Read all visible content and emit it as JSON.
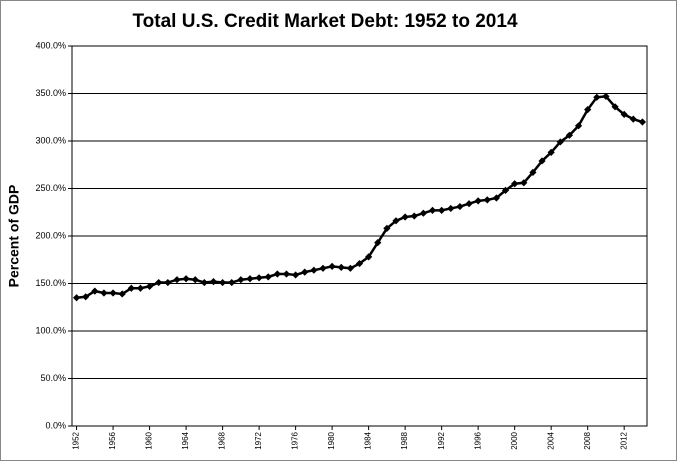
{
  "chart_data": {
    "type": "line",
    "title": "Total U.S. Credit Market Debt:  1952 to 2014",
    "y_label": "Percent of GDP",
    "x": [
      1952,
      1953,
      1954,
      1955,
      1956,
      1957,
      1958,
      1959,
      1960,
      1961,
      1962,
      1963,
      1964,
      1965,
      1966,
      1967,
      1968,
      1969,
      1970,
      1971,
      1972,
      1973,
      1974,
      1975,
      1976,
      1977,
      1978,
      1979,
      1980,
      1981,
      1982,
      1983,
      1984,
      1985,
      1986,
      1987,
      1988,
      1989,
      1990,
      1991,
      1992,
      1993,
      1994,
      1995,
      1996,
      1997,
      1998,
      1999,
      2000,
      2001,
      2002,
      2003,
      2004,
      2005,
      2006,
      2007,
      2008,
      2009,
      2010,
      2011,
      2012,
      2013,
      2014
    ],
    "values": [
      135,
      136,
      142,
      140,
      140,
      139,
      145,
      145,
      147,
      151,
      151,
      154,
      155,
      154,
      151,
      152,
      151,
      151,
      154,
      155,
      156,
      157,
      160,
      160,
      159,
      162,
      164,
      166,
      168,
      167,
      166,
      171,
      178,
      193,
      208,
      216,
      220,
      221,
      224,
      227,
      227,
      229,
      231,
      234,
      237,
      238,
      240,
      248,
      255,
      256,
      267,
      279,
      288,
      299,
      306,
      316,
      333,
      346,
      347,
      336,
      328,
      323,
      320
    ],
    "color": "#000000",
    "xlim": [
      1951.5,
      2014.5
    ],
    "xticks": [
      1952,
      1956,
      1960,
      1964,
      1968,
      1972,
      1976,
      1980,
      1984,
      1988,
      1992,
      1996,
      2000,
      2004,
      2008,
      2012
    ],
    "ylim": [
      0,
      400
    ],
    "yticks": [
      {
        "value": 0,
        "label": "0.0%"
      },
      {
        "value": 50,
        "label": "50.0%"
      },
      {
        "value": 100,
        "label": "100.0%"
      },
      {
        "value": 150,
        "label": "150.0%"
      },
      {
        "value": 200,
        "label": "200.0%"
      },
      {
        "value": 250,
        "label": "250.0%"
      },
      {
        "value": 300,
        "label": "300.0%"
      },
      {
        "value": 350,
        "label": "350.0%"
      },
      {
        "value": 400,
        "label": "400.0%"
      }
    ],
    "grid": true
  }
}
